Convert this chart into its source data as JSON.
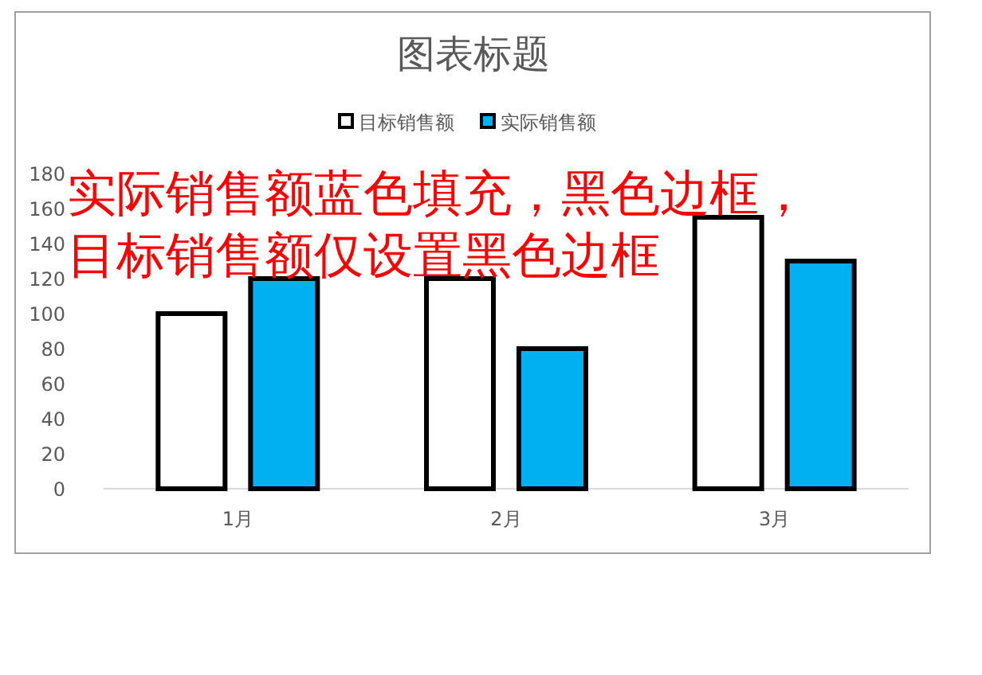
{
  "chart_data": {
    "type": "bar",
    "title": "图表标题",
    "categories": [
      "1月",
      "2月",
      "3月"
    ],
    "series": [
      {
        "name": "目标销售额",
        "color": "#ffffff",
        "values": [
          100,
          120,
          155
        ]
      },
      {
        "name": "实际销售额",
        "color": "#00b0f0",
        "values": [
          120,
          80,
          130
        ]
      }
    ],
    "ylim": [
      0,
      180
    ],
    "yticks": [
      0,
      20,
      40,
      60,
      80,
      100,
      120,
      140,
      160,
      180
    ],
    "grid": false,
    "legend": "top",
    "annotations": [
      "实际销售额蓝色填充，黑色边框，",
      "目标销售额仅设置黑色边框"
    ]
  }
}
